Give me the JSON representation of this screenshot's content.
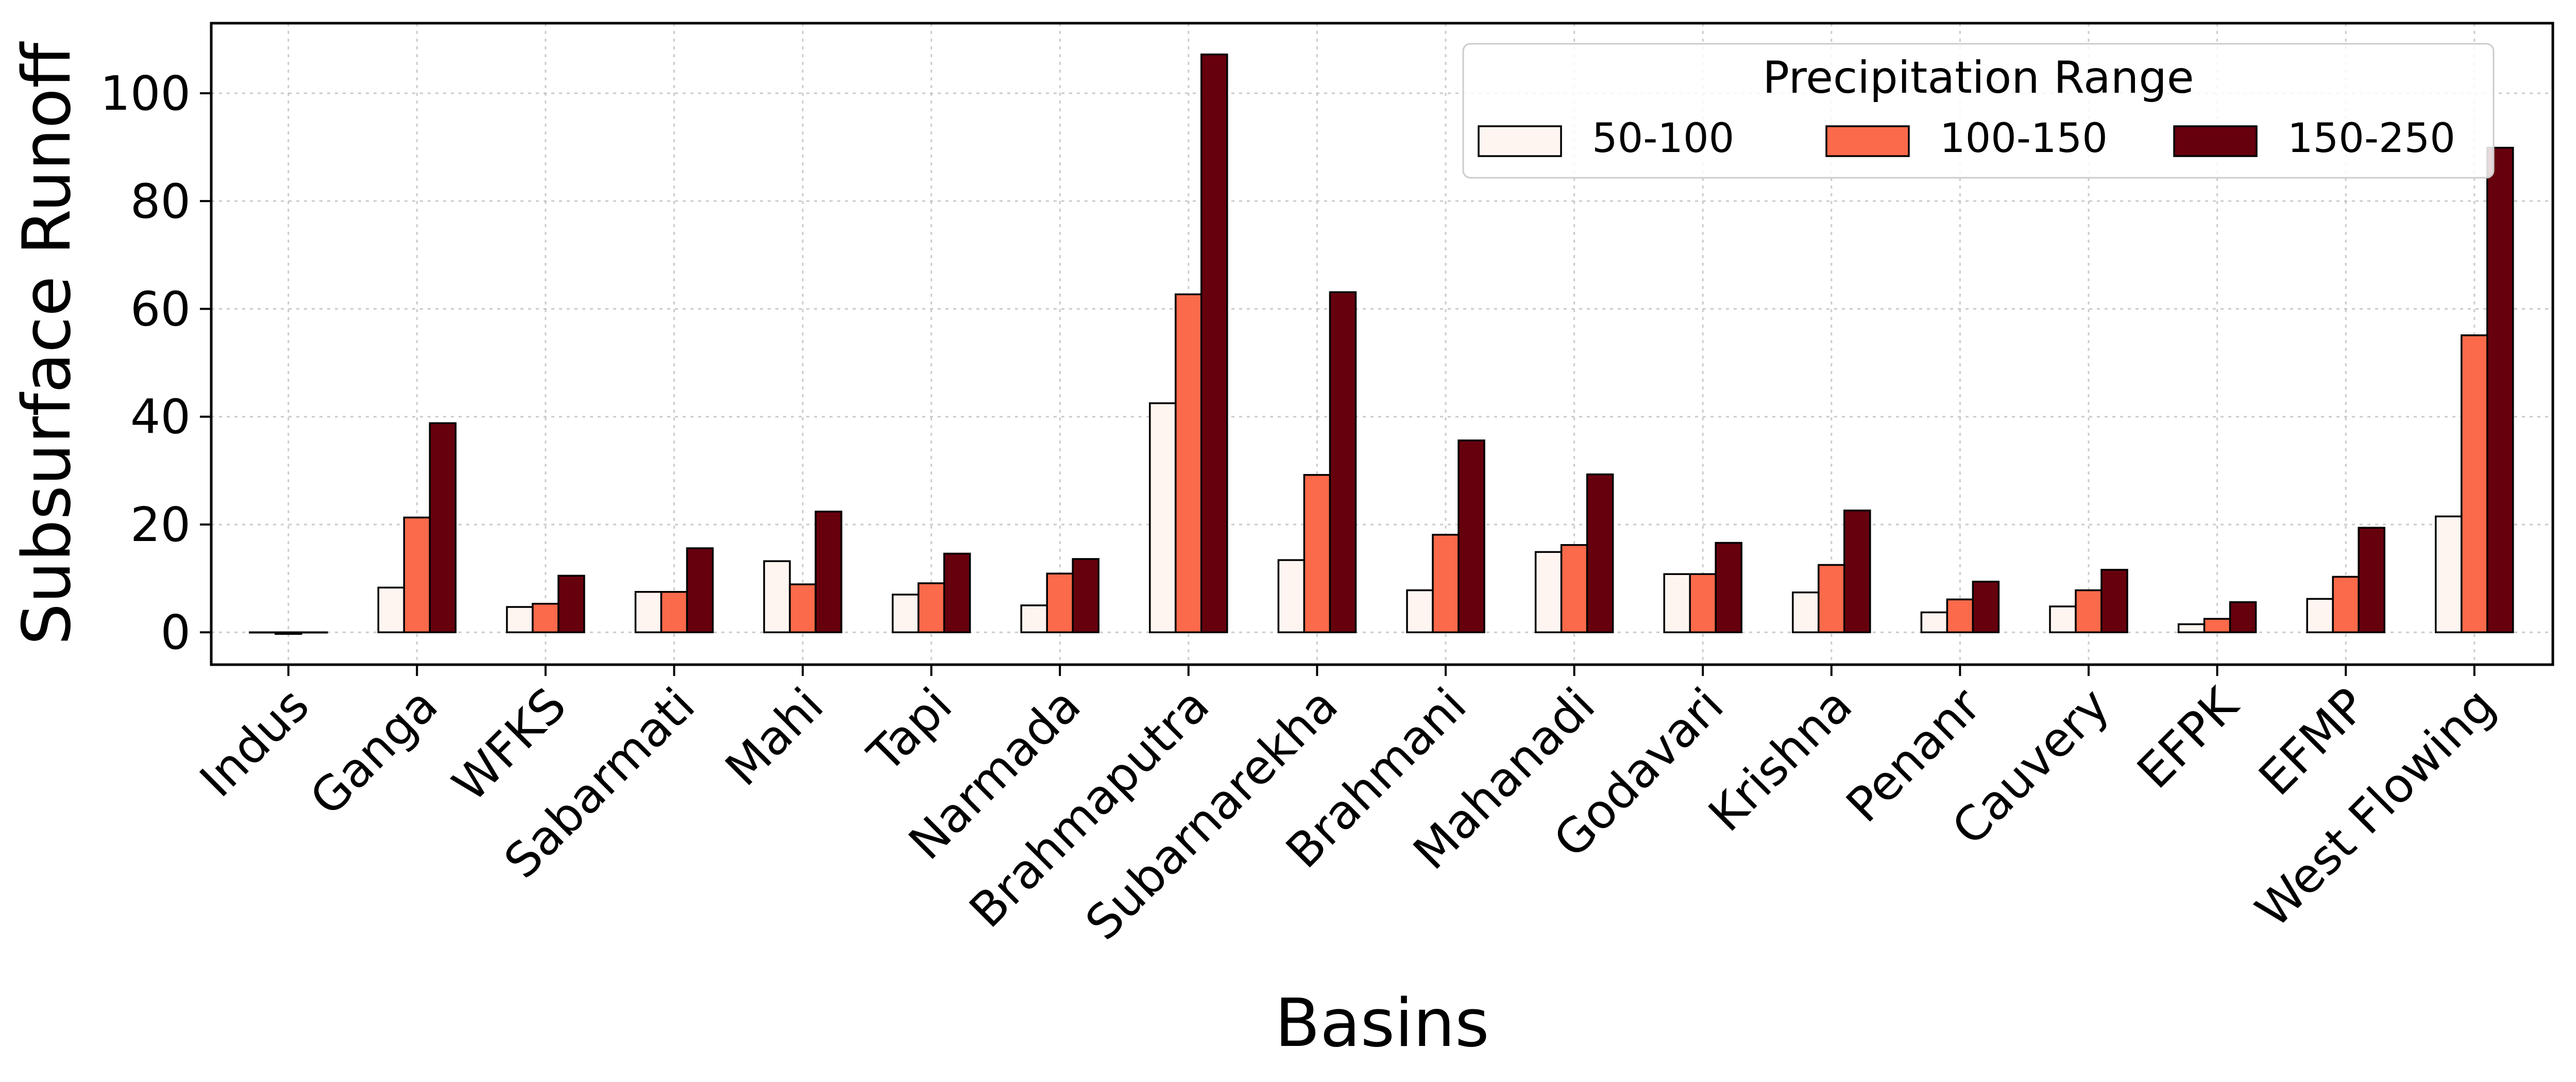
{
  "chart_data": {
    "type": "bar",
    "xlabel": "Basins",
    "ylabel": "Subsurface Runoff",
    "ylim": [
      -6,
      113
    ],
    "yticks": [
      0,
      20,
      40,
      60,
      80,
      100
    ],
    "grid": true,
    "legend": {
      "title": "Precipitation Range",
      "placement": "top-right",
      "columns": 3
    },
    "categories": [
      "Indus",
      "Ganga",
      "WFKS",
      "Sabarmati",
      "Mahi",
      "Tapi",
      "Narmada",
      "Brahmaputra",
      "Subarnarekha",
      "Brahmani",
      "Mahanadi",
      "Godavari",
      "Krishna",
      "Penanr",
      "Cauvery",
      "EFPK",
      "EFMP",
      "West Flowing"
    ],
    "series": [
      {
        "name": "50-100",
        "color": "#fff5f0",
        "values": [
          0.0,
          8.3,
          4.7,
          7.5,
          13.2,
          7.0,
          5.0,
          42.5,
          13.4,
          7.8,
          14.9,
          10.8,
          7.4,
          3.7,
          4.8,
          1.5,
          6.2,
          21.5
        ]
      },
      {
        "name": "100-150",
        "color": "#fb6a4a",
        "values": [
          -0.3,
          21.3,
          5.3,
          7.5,
          8.9,
          9.1,
          10.9,
          62.7,
          29.2,
          18.1,
          16.2,
          10.8,
          12.5,
          6.1,
          7.8,
          2.5,
          10.3,
          55.1
        ]
      },
      {
        "name": "150-250",
        "color": "#67000d",
        "values": [
          0.0,
          38.8,
          10.5,
          15.6,
          22.4,
          14.6,
          13.6,
          107.2,
          63.1,
          35.6,
          29.3,
          16.6,
          22.6,
          9.4,
          11.6,
          5.6,
          19.4,
          89.9
        ]
      }
    ]
  }
}
